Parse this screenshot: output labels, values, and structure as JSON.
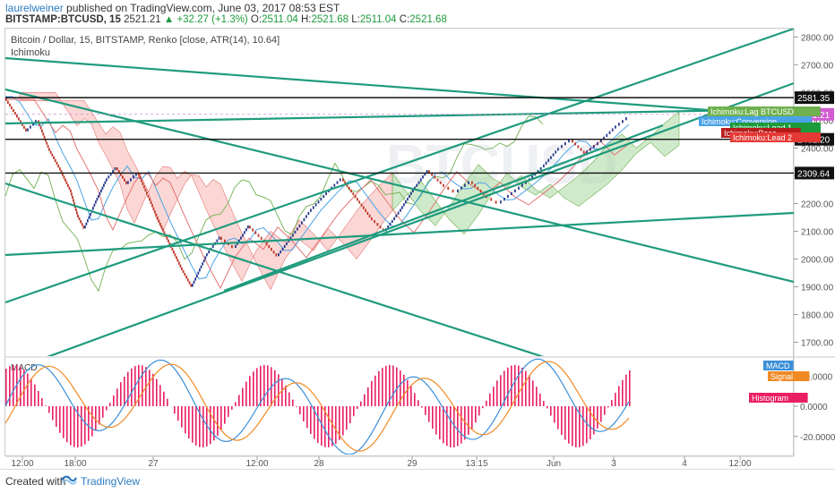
{
  "header": {
    "author": "laurelweiner",
    "published_text": " published on TradingView.com, June 03, 2017 08:53 EST",
    "symbol": "BITSTAMP:BTCUSD, 15",
    "last": "2521.21",
    "change": "+32.27 (+1.3%)",
    "o_label": "O:",
    "o": "2511.04",
    "h_label": "H:",
    "h": "2521.68",
    "l_label": "L:",
    "l": "2511.04",
    "c_label": "C:",
    "c": "2521.68"
  },
  "footer": {
    "created_with": "Created with",
    "tradingview": "TradingView"
  },
  "colors": {
    "trend": "#1f9b7e",
    "up": "#2a3a8f",
    "down": "#c0392b",
    "cloud_bull": "#a8d8a0",
    "cloud_bear": "#f5b7b1",
    "lagging": "#6fb04f",
    "base": "#e57373",
    "conv": "#4aa3e8",
    "macd": "#3a8fd8",
    "signal": "#f08a24",
    "hist": "#e91e63"
  },
  "chart_data": {
    "type": "line",
    "title": "Bitcoin / Dollar, 15, BITSTAMP, Renko [close, ATR(14), 10.64]",
    "indicator_label": "Ichimoku",
    "price_axis": {
      "ticks": [
        2800,
        2700,
        2600,
        2500,
        2400,
        2300,
        2200,
        2100,
        2000,
        1900,
        1800,
        1700
      ],
      "min": 1650,
      "max": 2830
    },
    "x_ticks": [
      "12:00",
      "18:00",
      "27",
      "12:00",
      "28",
      "29",
      "13:15",
      "Jun",
      "3",
      "4",
      "12:00"
    ],
    "horizontal_levels": [
      {
        "value": 2581.35,
        "label": "2581.35"
      },
      {
        "value": 2431.2,
        "label": "2431.20"
      },
      {
        "value": 2309.64,
        "label": "2309.64"
      }
    ],
    "last_price": {
      "value": 2521.21,
      "label": "2521.21",
      "color": "#d25ad2"
    },
    "renko_close": [
      [
        0,
        2580
      ],
      [
        3,
        2520
      ],
      [
        6,
        2460
      ],
      [
        9,
        2500
      ],
      [
        12,
        2400
      ],
      [
        15,
        2330
      ],
      [
        18,
        2250
      ],
      [
        20,
        2160
      ],
      [
        22,
        2110
      ],
      [
        25,
        2200
      ],
      [
        28,
        2280
      ],
      [
        31,
        2330
      ],
      [
        34,
        2270
      ],
      [
        37,
        2310
      ],
      [
        40,
        2220
      ],
      [
        43,
        2130
      ],
      [
        46,
        2050
      ],
      [
        49,
        1970
      ],
      [
        52,
        1900
      ],
      [
        56,
        2010
      ],
      [
        60,
        2080
      ],
      [
        64,
        2040
      ],
      [
        68,
        2120
      ],
      [
        72,
        2070
      ],
      [
        76,
        2010
      ],
      [
        80,
        2080
      ],
      [
        85,
        2170
      ],
      [
        90,
        2240
      ],
      [
        94,
        2290
      ],
      [
        98,
        2220
      ],
      [
        102,
        2150
      ],
      [
        106,
        2100
      ],
      [
        110,
        2170
      ],
      [
        114,
        2250
      ],
      [
        118,
        2320
      ],
      [
        122,
        2270
      ],
      [
        126,
        2240
      ],
      [
        130,
        2280
      ],
      [
        134,
        2230
      ],
      [
        138,
        2200
      ],
      [
        142,
        2240
      ],
      [
        146,
        2280
      ],
      [
        150,
        2330
      ],
      [
        154,
        2390
      ],
      [
        158,
        2430
      ],
      [
        162,
        2380
      ],
      [
        166,
        2420
      ],
      [
        170,
        2470
      ],
      [
        174,
        2510
      ]
    ],
    "ichimoku_legend": [
      "Ichimoku:Lag BTCUSD",
      "Ichimoku:Conversion",
      "Ichimoku:Lead 1",
      "Ichimoku:Base",
      "Ichimoku:Lead 2"
    ],
    "ichimoku_legend_colors": [
      "#6fb04f",
      "#4aa3e8",
      "#1d9a3c",
      "#b71c1c",
      "#e53935"
    ],
    "macd_panel": {
      "label": "MACD",
      "ticks": [
        20.0,
        0.0,
        -20.0
      ],
      "tick_labels": [
        "20.0000",
        "0.0000",
        "-20.0000"
      ],
      "legend": [
        "MACD",
        "Signal",
        "Histogram"
      ],
      "legend_colors": [
        "#3a8fd8",
        "#f08a24",
        "#e91e63"
      ],
      "min": -32,
      "max": 32
    }
  }
}
